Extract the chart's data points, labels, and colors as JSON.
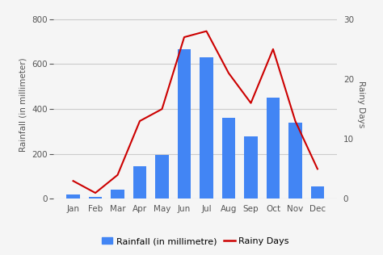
{
  "months": [
    "Jan",
    "Feb",
    "Mar",
    "Apr",
    "May",
    "Jun",
    "Jul",
    "Aug",
    "Sep",
    "Oct",
    "Nov",
    "Dec"
  ],
  "rainfall": [
    20,
    10,
    40,
    145,
    195,
    665,
    630,
    360,
    280,
    450,
    340,
    55
  ],
  "rainy_days": [
    3,
    1,
    4,
    13,
    15,
    27,
    28,
    21,
    16,
    25,
    13,
    5
  ],
  "bar_color": "#4285f4",
  "line_color": "#cc0000",
  "ylabel_left": "Rainfall (in millimeter)",
  "ylabel_right": "Rainy Days",
  "ylim_left": [
    0,
    840
  ],
  "ylim_right": [
    0,
    31.5
  ],
  "yticks_left": [
    0,
    200,
    400,
    600,
    800
  ],
  "yticks_right": [
    0,
    10,
    20,
    30
  ],
  "legend_bar_label": "Rainfall (in millimetre)",
  "legend_line_label": "Rainy Days",
  "background_color": "#f5f5f5",
  "plot_background": "#f5f5f5",
  "grid_color": "#cccccc",
  "tick_color": "#555555",
  "label_color": "#555555",
  "axis_fontsize": 7.5,
  "tick_fontsize": 7.5,
  "legend_fontsize": 8
}
